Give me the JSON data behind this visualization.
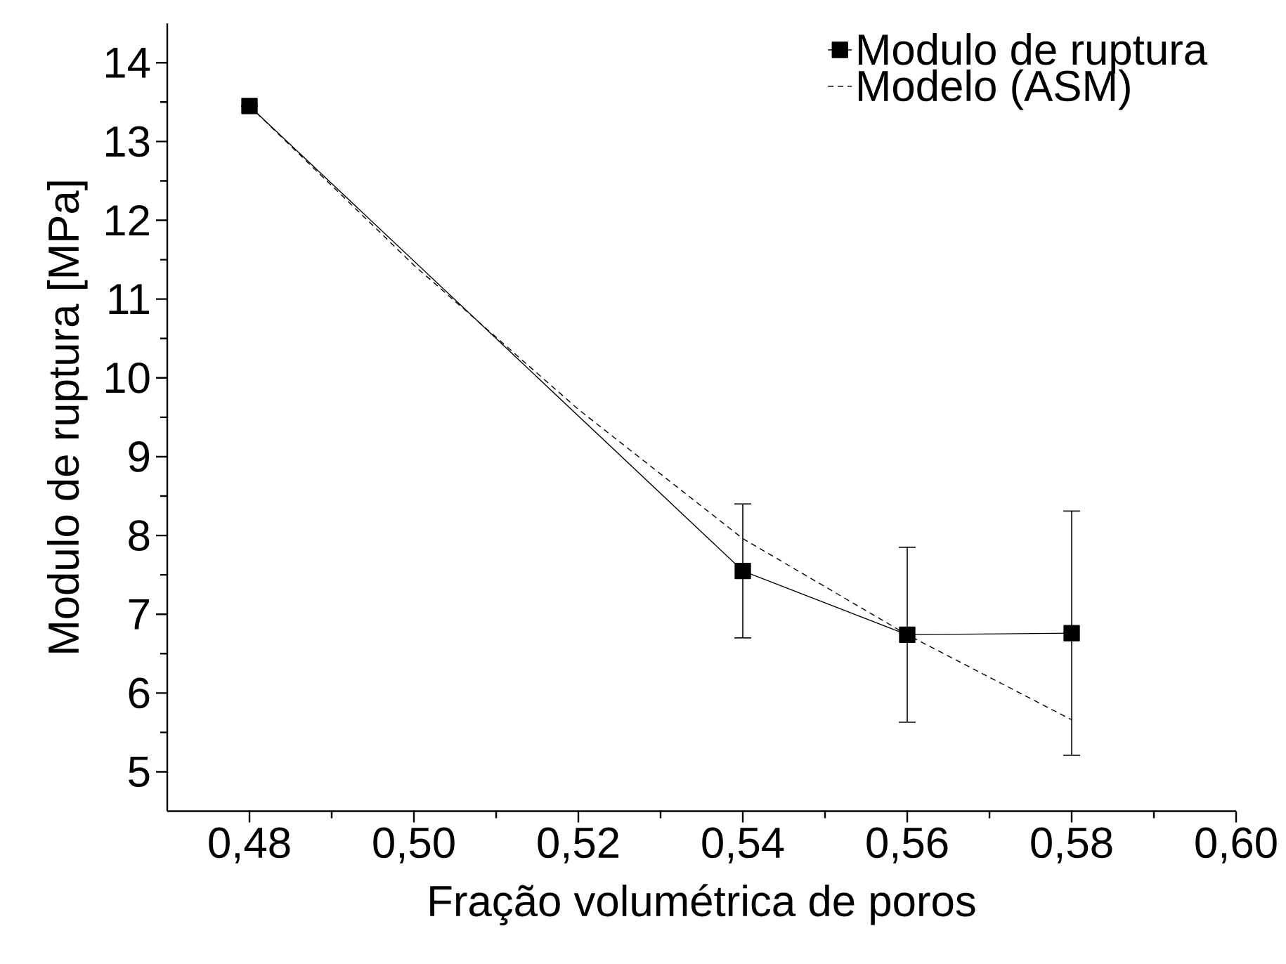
{
  "chart_data": {
    "type": "line",
    "xlabel": "Fração volumétrica de poros",
    "ylabel": "Modulo de ruptura [MPa]",
    "x": [
      0.48,
      0.54,
      0.56,
      0.58
    ],
    "series": [
      {
        "name": "Modulo de ruptura",
        "color": "#000000",
        "values": [
          13.45,
          7.55,
          6.74,
          6.76
        ],
        "errors": [
          null,
          0.85,
          1.11,
          1.55
        ],
        "marker": "square",
        "line_style": "solid"
      },
      {
        "name": "Modelo (ASM)",
        "color": "#000000",
        "x": [
          0.48,
          0.5,
          0.52,
          0.54,
          0.56,
          0.58
        ],
        "values": [
          13.45,
          11.43,
          9.6,
          7.96,
          6.74,
          5.66
        ],
        "marker": "none",
        "line_style": "dashed"
      }
    ],
    "xlim": [
      0.47,
      0.6
    ],
    "xticks": [
      {
        "value": 0.48,
        "label": "0,48"
      },
      {
        "value": 0.5,
        "label": "0,50"
      },
      {
        "value": 0.52,
        "label": "0,52"
      },
      {
        "value": 0.54,
        "label": "0,54"
      },
      {
        "value": 0.56,
        "label": "0,56"
      },
      {
        "value": 0.58,
        "label": "0,58"
      },
      {
        "value": 0.6,
        "label": "0,60"
      }
    ],
    "ylim": [
      4.5,
      14.5
    ],
    "yticks": [
      5,
      6,
      7,
      8,
      9,
      10,
      11,
      12,
      13,
      14
    ],
    "grid": false,
    "legend": "top right"
  }
}
